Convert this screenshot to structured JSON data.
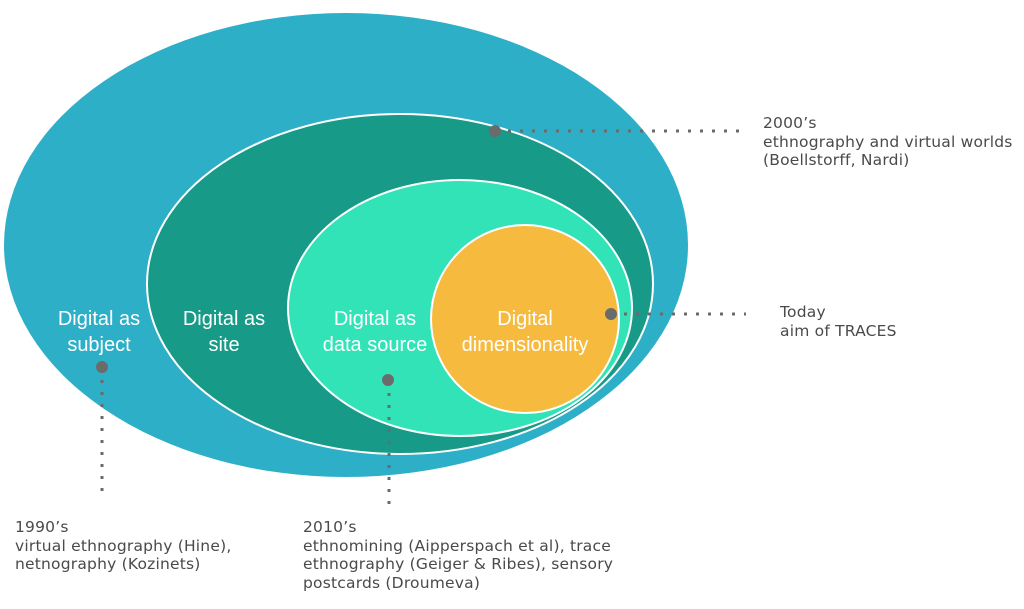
{
  "rings": [
    {
      "key": "subject",
      "lines": [
        "Digital as",
        "subject"
      ],
      "color": "#2eafc8"
    },
    {
      "key": "site",
      "lines": [
        "Digital as",
        "site"
      ],
      "color": "#179a87"
    },
    {
      "key": "data_source",
      "lines": [
        "Digital as",
        "data source"
      ],
      "color": "#33e3b8"
    },
    {
      "key": "dimensionality",
      "lines": [
        "Digital",
        "dimensionality"
      ],
      "color": "#f6bb3e"
    }
  ],
  "annotations": {
    "y2000s": {
      "lines": [
        "2000’s",
        "ethnography and virtual worlds",
        "(Boellstorff, Nardi)"
      ]
    },
    "today": {
      "lines": [
        "Today",
        "aim of TRACES"
      ]
    },
    "y1990s": {
      "lines": [
        "1990’s",
        "virtual ethnography (Hine),",
        "netnography (Kozinets)"
      ]
    },
    "y2010s": {
      "lines": [
        "2010’s",
        "ethnomining (Aipperspach et al), trace",
        "ethnography (Geiger & Ribes), sensory",
        "postcards (Droumeva)"
      ]
    }
  },
  "colors": {
    "marker": "#6b6b6b",
    "ring_stroke": "#ffffff",
    "text": "#4a4a4a"
  }
}
